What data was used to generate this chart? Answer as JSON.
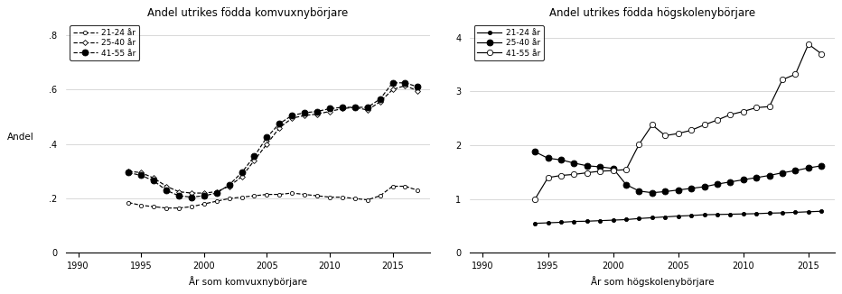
{
  "left": {
    "title": "Andel utrikes födda komvuxnybörjare",
    "xlabel": "År som komvuxnybörjare",
    "ylabel": "Andel",
    "ylim": [
      0,
      0.85
    ],
    "yticks": [
      0,
      0.2,
      0.4,
      0.6,
      0.8
    ],
    "ytick_labels": [
      "0",
      ".2",
      ".4",
      ".6",
      ".8"
    ],
    "xticks": [
      1990,
      1995,
      2000,
      2005,
      2010,
      2015
    ],
    "xlim": [
      1989,
      2018
    ],
    "series": [
      {
        "label": "21-24 år",
        "linestyle": "--",
        "marker": "o",
        "markerfacecolor": "white",
        "markersize": 3.0,
        "color": "black",
        "years": [
          1994,
          1995,
          1996,
          1997,
          1998,
          1999,
          2000,
          2001,
          2002,
          2003,
          2004,
          2005,
          2006,
          2007,
          2008,
          2009,
          2010,
          2011,
          2012,
          2013,
          2014,
          2015,
          2016,
          2017
        ],
        "values": [
          0.185,
          0.175,
          0.17,
          0.165,
          0.165,
          0.17,
          0.18,
          0.19,
          0.2,
          0.205,
          0.21,
          0.215,
          0.215,
          0.22,
          0.215,
          0.21,
          0.205,
          0.205,
          0.2,
          0.195,
          0.21,
          0.245,
          0.245,
          0.23
        ]
      },
      {
        "label": "25-40 år",
        "linestyle": "--",
        "marker": "D",
        "markerfacecolor": "white",
        "markersize": 3.0,
        "color": "black",
        "years": [
          1994,
          1995,
          1996,
          1997,
          1998,
          1999,
          2000,
          2001,
          2002,
          2003,
          2004,
          2005,
          2006,
          2007,
          2008,
          2009,
          2010,
          2011,
          2012,
          2013,
          2014,
          2015,
          2016,
          2017
        ],
        "values": [
          0.3,
          0.295,
          0.275,
          0.245,
          0.225,
          0.22,
          0.22,
          0.225,
          0.245,
          0.28,
          0.34,
          0.4,
          0.46,
          0.495,
          0.505,
          0.51,
          0.52,
          0.53,
          0.535,
          0.525,
          0.555,
          0.6,
          0.615,
          0.595
        ]
      },
      {
        "label": "41-55 år",
        "linestyle": "--",
        "marker": "o",
        "markerfacecolor": "black",
        "markersize": 5,
        "color": "black",
        "years": [
          1994,
          1995,
          1996,
          1997,
          1998,
          1999,
          2000,
          2001,
          2002,
          2003,
          2004,
          2005,
          2006,
          2007,
          2008,
          2009,
          2010,
          2011,
          2012,
          2013,
          2014,
          2015,
          2016,
          2017
        ],
        "values": [
          0.295,
          0.285,
          0.265,
          0.23,
          0.21,
          0.205,
          0.21,
          0.22,
          0.25,
          0.295,
          0.355,
          0.425,
          0.475,
          0.505,
          0.515,
          0.52,
          0.53,
          0.535,
          0.535,
          0.535,
          0.565,
          0.625,
          0.625,
          0.61
        ]
      }
    ]
  },
  "right": {
    "title": "Andel utrikes födda högskolenybörjare",
    "xlabel": "År som högskolenybörjare",
    "ylabel": "",
    "ylim": [
      0,
      4.3
    ],
    "yticks": [
      0,
      1,
      2,
      3,
      4
    ],
    "ytick_labels": [
      "0",
      "1",
      "2",
      "3",
      "4"
    ],
    "xticks": [
      1990,
      1995,
      2000,
      2005,
      2010,
      2015
    ],
    "xlim": [
      1989,
      2017
    ],
    "series": [
      {
        "label": "21-24 år",
        "linestyle": "-",
        "marker": "o",
        "markerfacecolor": "black",
        "markersize": 3.0,
        "color": "black",
        "years": [
          1994,
          1995,
          1996,
          1997,
          1998,
          1999,
          2000,
          2001,
          2002,
          2003,
          2004,
          2005,
          2006,
          2007,
          2008,
          2009,
          2010,
          2011,
          2012,
          2013,
          2014,
          2015,
          2016
        ],
        "values": [
          0.55,
          0.56,
          0.57,
          0.585,
          0.59,
          0.6,
          0.61,
          0.62,
          0.64,
          0.655,
          0.67,
          0.685,
          0.695,
          0.71,
          0.715,
          0.72,
          0.725,
          0.73,
          0.74,
          0.745,
          0.755,
          0.765,
          0.775
        ]
      },
      {
        "label": "25-40 år",
        "linestyle": "-",
        "marker": "o",
        "markerfacecolor": "black",
        "markersize": 5,
        "color": "black",
        "years": [
          1994,
          1995,
          1996,
          1997,
          1998,
          1999,
          2000,
          2001,
          2002,
          2003,
          2004,
          2005,
          2006,
          2007,
          2008,
          2009,
          2010,
          2011,
          2012,
          2013,
          2014,
          2015,
          2016
        ],
        "values": [
          1.88,
          1.76,
          1.73,
          1.67,
          1.62,
          1.6,
          1.57,
          1.27,
          1.15,
          1.12,
          1.14,
          1.17,
          1.2,
          1.23,
          1.28,
          1.32,
          1.36,
          1.4,
          1.44,
          1.49,
          1.53,
          1.58,
          1.62
        ]
      },
      {
        "label": "41-55 år",
        "linestyle": "-",
        "marker": "o",
        "markerfacecolor": "white",
        "markersize": 4.5,
        "color": "black",
        "years": [
          1994,
          1995,
          1996,
          1997,
          1998,
          1999,
          2000,
          2001,
          2002,
          2003,
          2004,
          2005,
          2006,
          2007,
          2008,
          2009,
          2010,
          2011,
          2012,
          2013,
          2014,
          2015,
          2016
        ],
        "values": [
          1.0,
          1.4,
          1.44,
          1.46,
          1.49,
          1.52,
          1.53,
          1.55,
          2.02,
          2.38,
          2.18,
          2.22,
          2.28,
          2.38,
          2.47,
          2.57,
          2.63,
          2.7,
          2.72,
          3.22,
          3.32,
          3.88,
          3.7
        ]
      }
    ]
  }
}
